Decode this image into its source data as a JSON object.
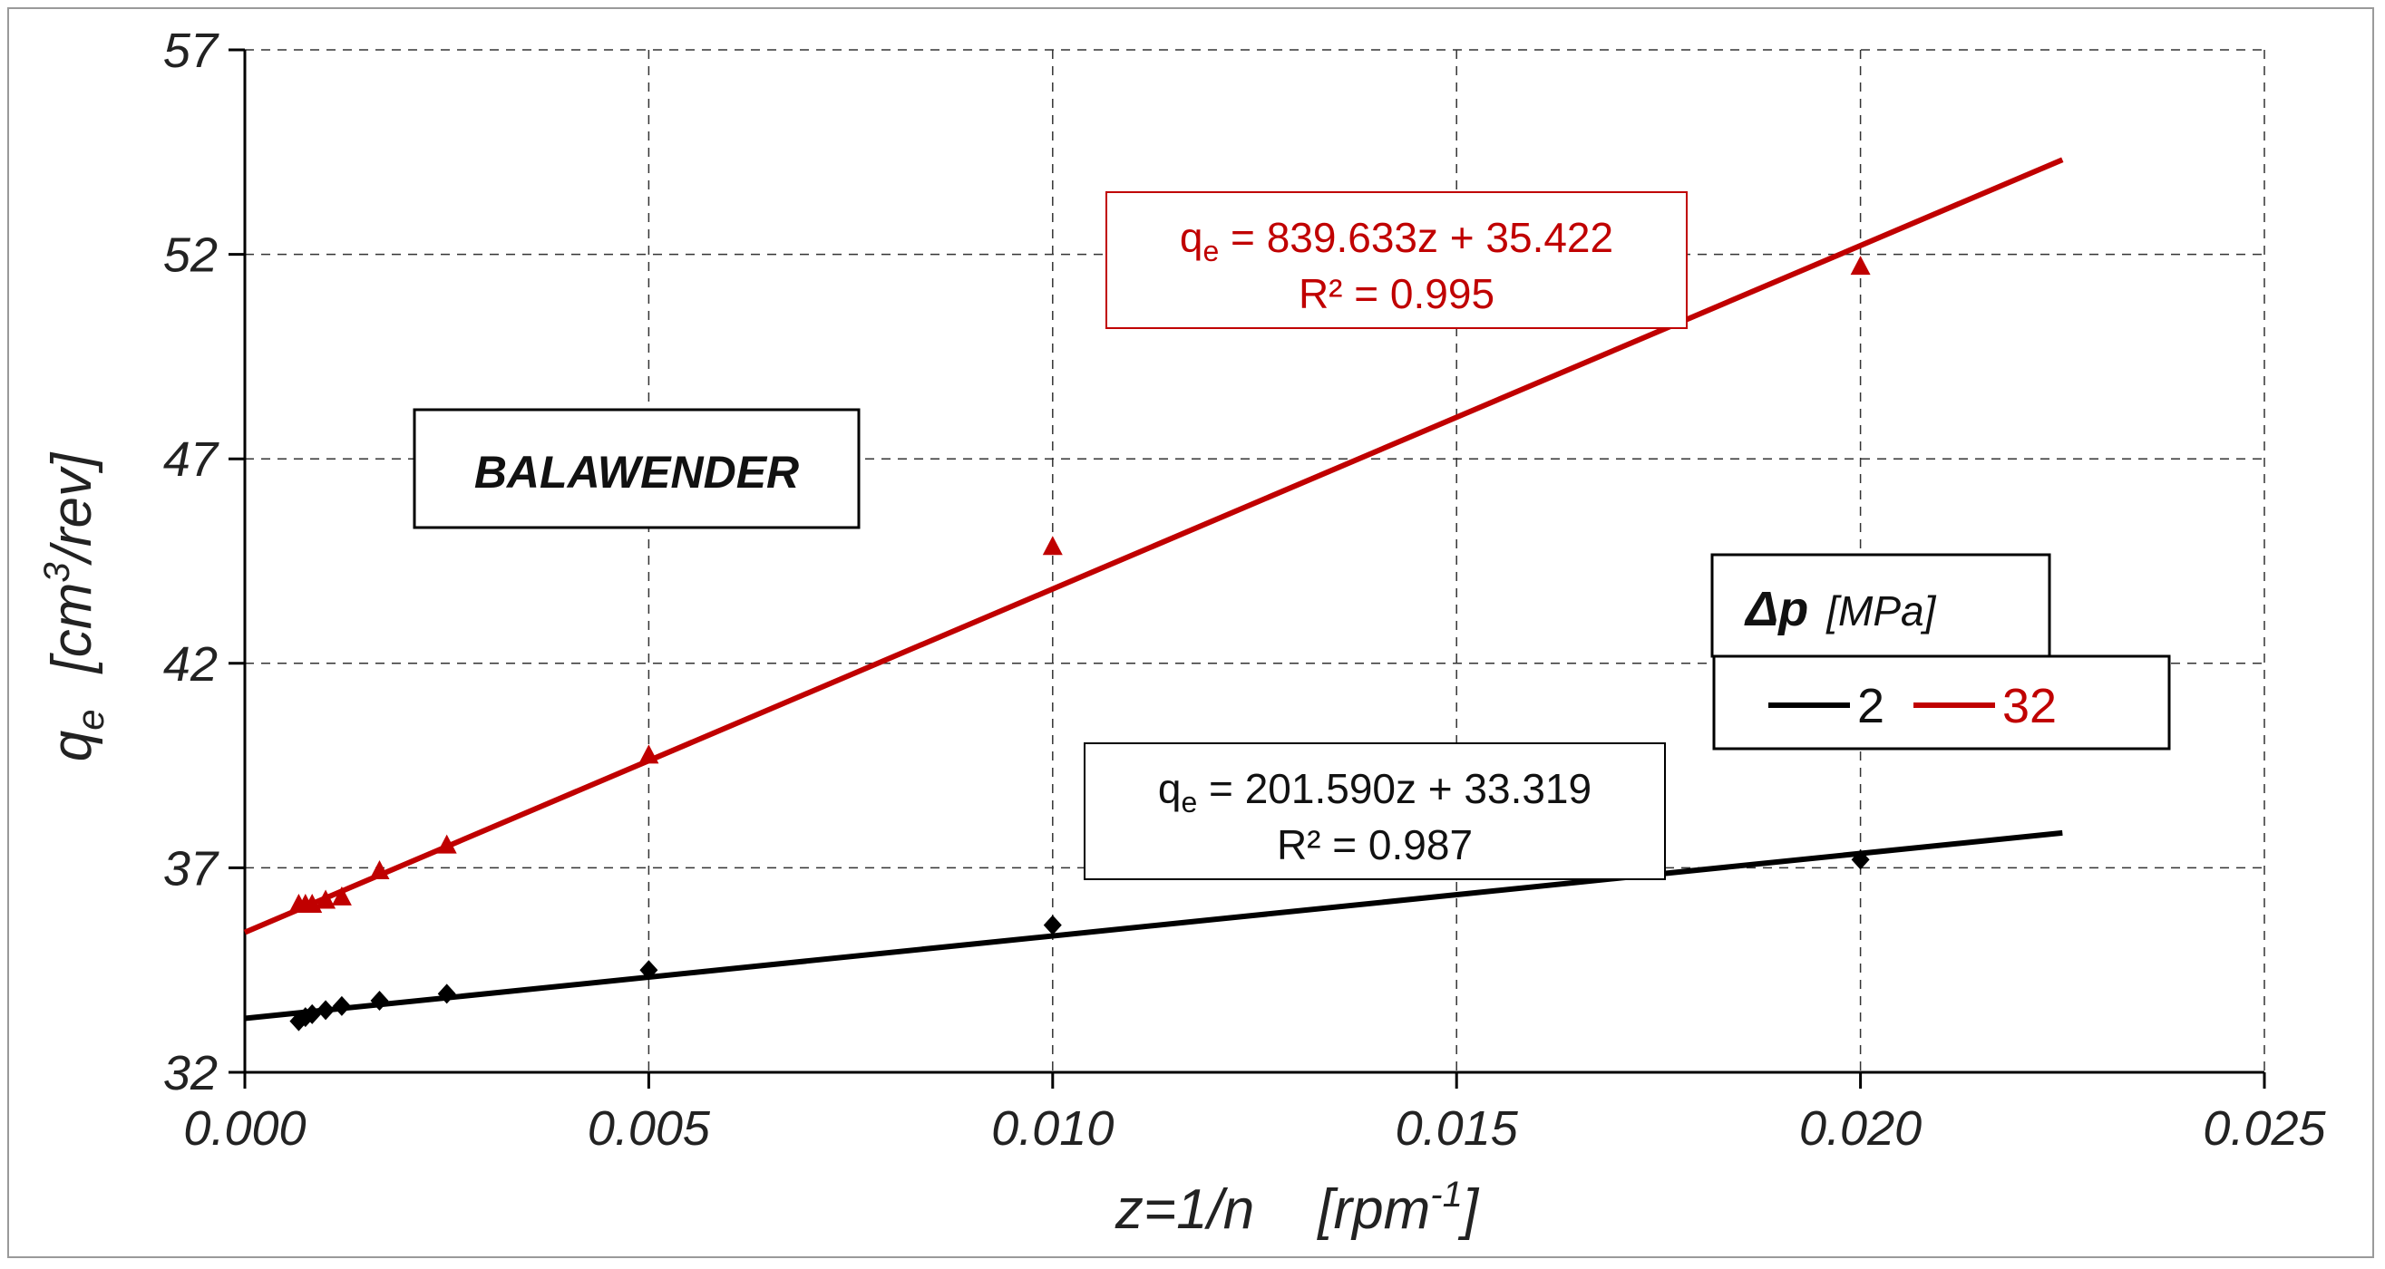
{
  "chart_data": {
    "type": "scatter",
    "title": "",
    "xlabel": "z=1/n",
    "xunit": "[rpm",
    "xunit_exp": "-1",
    "xunit_close": "]",
    "ylabel_symbol": "q",
    "ylabel_sub": "e",
    "ylabel_unit": "[cm",
    "ylabel_unit_exp": "3",
    "ylabel_unit_close": "/rev]",
    "xlim": [
      0.0,
      0.025
    ],
    "ylim": [
      32,
      57
    ],
    "xticks": [
      "0.000",
      "0.005",
      "0.010",
      "0.015",
      "0.020",
      "0.025"
    ],
    "xtick_values": [
      0.0,
      0.005,
      0.01,
      0.015,
      0.02,
      0.025
    ],
    "yticks": [
      "32",
      "37",
      "42",
      "47",
      "52",
      "57"
    ],
    "ytick_values": [
      32,
      37,
      42,
      47,
      52,
      57
    ],
    "grid": true,
    "annotation": "BALAWENDER",
    "legend": {
      "title_symbol": "Δp",
      "title_unit": "[MPa]",
      "position": "right"
    },
    "series": [
      {
        "name": "2",
        "color": "#000000",
        "marker": "diamond",
        "x": [
          0.000667,
          0.00075,
          0.000833,
          0.001,
          0.0012,
          0.001667,
          0.0025,
          0.005,
          0.01,
          0.02
        ],
        "y": [
          33.25,
          33.35,
          33.42,
          33.52,
          33.62,
          33.75,
          33.92,
          34.5,
          35.6,
          37.2
        ],
        "fit": {
          "slope": 201.59,
          "intercept": 33.319,
          "x_range": [
            0.0,
            0.0225
          ]
        },
        "equation_prefix": "q",
        "equation_sub": "e",
        "equation": " = 201.590z  + 33.319",
        "r2": "R² = 0.987"
      },
      {
        "name": "32",
        "color": "#c00000",
        "marker": "triangle",
        "x": [
          0.000667,
          0.00075,
          0.000833,
          0.001,
          0.0012,
          0.001667,
          0.0025,
          0.005,
          0.01,
          0.02
        ],
        "y": [
          36.1,
          36.1,
          36.1,
          36.2,
          36.28,
          36.92,
          37.55,
          39.75,
          44.85,
          51.7
        ],
        "fit": {
          "slope": 839.633,
          "intercept": 35.422,
          "x_range": [
            0.0,
            0.0225
          ]
        },
        "equation_prefix": "q",
        "equation_sub": "e",
        "equation": " = 839.633z  + 35.422",
        "r2": "R² = 0.995"
      }
    ]
  }
}
